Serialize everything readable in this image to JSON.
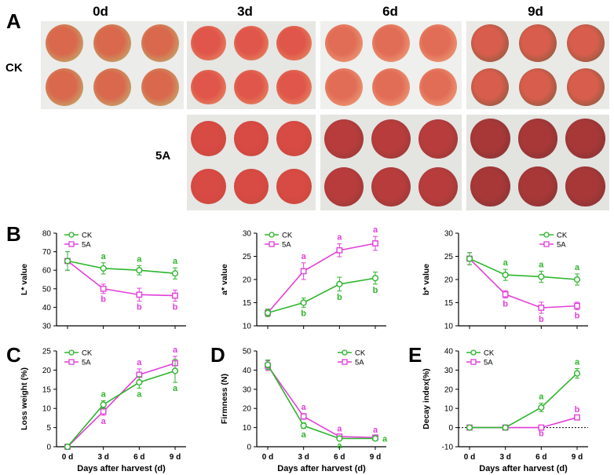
{
  "figure": {
    "panel_letters": {
      "A": "A",
      "B": "B",
      "C": "C",
      "D": "D",
      "E": "E"
    },
    "photo_panel": {
      "day_labels": [
        "0d",
        "3d",
        "6d",
        "9d"
      ],
      "row_labels": [
        "CK",
        "5A"
      ]
    }
  },
  "colors": {
    "CK": "#2db52d",
    "5A": "#e23fd9",
    "axis": "#000000"
  },
  "chart_data": [
    {
      "id": "L",
      "type": "line",
      "title": "",
      "xlabel": "",
      "ylabel": "L* value",
      "categories": [
        "",
        "",
        "",
        ""
      ],
      "ylim": [
        30,
        80
      ],
      "yticks": [
        30,
        40,
        50,
        60,
        70,
        80
      ],
      "legend": {
        "placement": "top-left",
        "entries": [
          "CK",
          "5A"
        ]
      },
      "series": [
        {
          "name": "CK",
          "values": [
            65,
            61,
            60,
            58.3
          ],
          "err": [
            5,
            3,
            2.5,
            3
          ],
          "letters": [
            "",
            "a",
            "a",
            "a"
          ],
          "letter_pos": [
            "",
            "above",
            "above",
            "above"
          ]
        },
        {
          "name": "5A",
          "values": [
            65,
            50,
            46.8,
            46.3
          ],
          "err": [
            5,
            2.5,
            3.5,
            3
          ],
          "letters": [
            "",
            "b",
            "b",
            "b"
          ],
          "letter_pos": [
            "",
            "below",
            "below",
            "below"
          ]
        }
      ]
    },
    {
      "id": "a",
      "type": "line",
      "title": "",
      "xlabel": "",
      "ylabel": "a* value",
      "categories": [
        "",
        "",
        "",
        ""
      ],
      "ylim": [
        10,
        30
      ],
      "yticks": [
        10,
        15,
        20,
        25,
        30
      ],
      "legend": {
        "placement": "top-left",
        "entries": [
          "CK",
          "5A"
        ]
      },
      "series": [
        {
          "name": "CK",
          "values": [
            12.8,
            15,
            19,
            20.3
          ],
          "err": [
            0.8,
            1,
            1.5,
            1.3
          ],
          "letters": [
            "",
            "b",
            "b",
            "b"
          ],
          "letter_pos": [
            "",
            "below",
            "below",
            "below"
          ]
        },
        {
          "name": "5A",
          "values": [
            12.8,
            21.8,
            26.3,
            27.8
          ],
          "err": [
            0.8,
            1.8,
            1.4,
            1.5
          ],
          "letters": [
            "",
            "a",
            "a",
            "a"
          ],
          "letter_pos": [
            "",
            "above",
            "above",
            "above"
          ]
        }
      ]
    },
    {
      "id": "b",
      "type": "line",
      "title": "",
      "xlabel": "",
      "ylabel": "b* value",
      "categories": [
        "",
        "",
        "",
        ""
      ],
      "ylim": [
        10,
        30
      ],
      "yticks": [
        10,
        15,
        20,
        25,
        30
      ],
      "legend": {
        "placement": "top-right",
        "entries": [
          "CK",
          "5A"
        ]
      },
      "series": [
        {
          "name": "CK",
          "values": [
            24.5,
            21,
            20.6,
            20
          ],
          "err": [
            1.3,
            1.2,
            1.2,
            1.2
          ],
          "letters": [
            "",
            "a",
            "a",
            "a"
          ],
          "letter_pos": [
            "",
            "above",
            "above",
            "above"
          ]
        },
        {
          "name": "5A",
          "values": [
            24.5,
            16.8,
            13.9,
            14.3
          ],
          "err": [
            1.3,
            0.8,
            1.2,
            0.8
          ],
          "letters": [
            "",
            "b",
            "b",
            "b"
          ],
          "letter_pos": [
            "",
            "below",
            "below",
            "below"
          ]
        }
      ]
    },
    {
      "id": "loss",
      "type": "line",
      "title": "",
      "xlabel": "Days after harvest (d)",
      "ylabel": "Loss weight (%)",
      "categories": [
        "0 d",
        "3 d",
        "6 d",
        "9 d"
      ],
      "ylim": [
        0,
        25
      ],
      "yticks": [
        0,
        5,
        10,
        15,
        20,
        25
      ],
      "legend": {
        "placement": "top-left",
        "entries": [
          "CK",
          "5A"
        ]
      },
      "series": [
        {
          "name": "CK",
          "values": [
            0,
            11,
            16.8,
            19.8
          ],
          "err": [
            0,
            1,
            1.5,
            3
          ],
          "letters": [
            "",
            "a",
            "a",
            "a"
          ],
          "letter_pos": [
            "",
            "above",
            "below",
            "below"
          ]
        },
        {
          "name": "5A",
          "values": [
            0,
            9.2,
            18.8,
            21.8
          ],
          "err": [
            0,
            1,
            1.5,
            1.8
          ],
          "letters": [
            "",
            "a",
            "a",
            "a"
          ],
          "letter_pos": [
            "",
            "below",
            "above",
            "above"
          ]
        }
      ]
    },
    {
      "id": "firm",
      "type": "line",
      "title": "",
      "xlabel": "Days after harvest (d)",
      "ylabel": "Firmness (N)",
      "categories": [
        "0 d",
        "3 d",
        "6 d",
        "9 d"
      ],
      "ylim": [
        0,
        50
      ],
      "yticks": [
        0,
        10,
        20,
        30,
        40,
        50
      ],
      "legend": {
        "placement": "top-right",
        "entries": [
          "CK",
          "5A"
        ]
      },
      "series": [
        {
          "name": "CK",
          "values": [
            42.8,
            11,
            4.3,
            4.3
          ],
          "err": [
            2.5,
            1.5,
            0.6,
            0.6
          ],
          "letters": [
            "",
            "a",
            "a",
            "a"
          ],
          "letter_pos": [
            "",
            "below",
            "below",
            "right"
          ]
        },
        {
          "name": "5A",
          "values": [
            42.3,
            15.8,
            5.3,
            4.8
          ],
          "err": [
            2.5,
            1.5,
            0.6,
            0.6
          ],
          "letters": [
            "",
            "a",
            "a",
            "a"
          ],
          "letter_pos": [
            "",
            "above",
            "above",
            "above"
          ]
        }
      ]
    },
    {
      "id": "decay",
      "type": "line",
      "title": "",
      "xlabel": "Days after harvest (d)",
      "ylabel": "Decay index(%)",
      "categories": [
        "0 d",
        "3 d",
        "6 d",
        "9 d"
      ],
      "ylim": [
        -10,
        40
      ],
      "yticks": [
        -10,
        0,
        10,
        20,
        30,
        40
      ],
      "zero_line": true,
      "legend": {
        "placement": "top-left",
        "entries": [
          "CK",
          "5A"
        ]
      },
      "series": [
        {
          "name": "CK",
          "values": [
            0,
            0,
            10.5,
            28.3
          ],
          "err": [
            0,
            0,
            2.2,
            2.5
          ],
          "letters": [
            "",
            "",
            "a",
            "a"
          ],
          "letter_pos": [
            "",
            "",
            "above",
            "above"
          ]
        },
        {
          "name": "5A",
          "values": [
            0,
            0,
            0,
            5.3
          ],
          "err": [
            0,
            0,
            0,
            0.6
          ],
          "letters": [
            "",
            "",
            "b",
            "b"
          ],
          "letter_pos": [
            "",
            "",
            "below",
            "above"
          ]
        }
      ]
    }
  ]
}
